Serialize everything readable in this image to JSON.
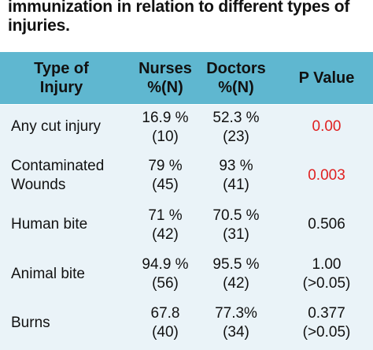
{
  "caption": {
    "line1": "immunization in relation to different types of",
    "line2": "injuries."
  },
  "headers": {
    "type": [
      "Type of",
      "Injury"
    ],
    "nurses": [
      "Nurses",
      "%(N)"
    ],
    "doctors": [
      "Doctors",
      "%(N)"
    ],
    "p": [
      "P Value"
    ]
  },
  "rows": [
    {
      "type": [
        "Any cut injury"
      ],
      "nurses": [
        "16.9 %",
        "(10)"
      ],
      "doctors": [
        "52.3 %",
        "(23)"
      ],
      "p": [
        "0.00"
      ]
    },
    {
      "type": [
        "Contaminated",
        "Wounds"
      ],
      "nurses": [
        "79 %",
        "(45)"
      ],
      "doctors": [
        "93 %",
        "(41)"
      ],
      "p": [
        "0.003"
      ]
    },
    {
      "type": [
        "Human bite"
      ],
      "nurses": [
        "71 %",
        "(42)"
      ],
      "doctors": [
        "70.5 %",
        "(31)"
      ],
      "p": [
        "0.506"
      ]
    },
    {
      "type": [
        "Animal bite"
      ],
      "nurses": [
        "94.9 %",
        "(56)"
      ],
      "doctors": [
        "95.5 %",
        "(42)"
      ],
      "p": [
        "1.00",
        "(>0.05)"
      ]
    },
    {
      "type": [
        "Burns"
      ],
      "nurses": [
        "67.8",
        "(40)"
      ],
      "doctors": [
        "77.3%",
        "(34)"
      ],
      "p": [
        "0.377",
        "(>0.05)"
      ]
    }
  ],
  "colors": {
    "header_bg": "#5fb7d0",
    "body_bg": "#eaf3f8",
    "significant": "#e02020"
  }
}
